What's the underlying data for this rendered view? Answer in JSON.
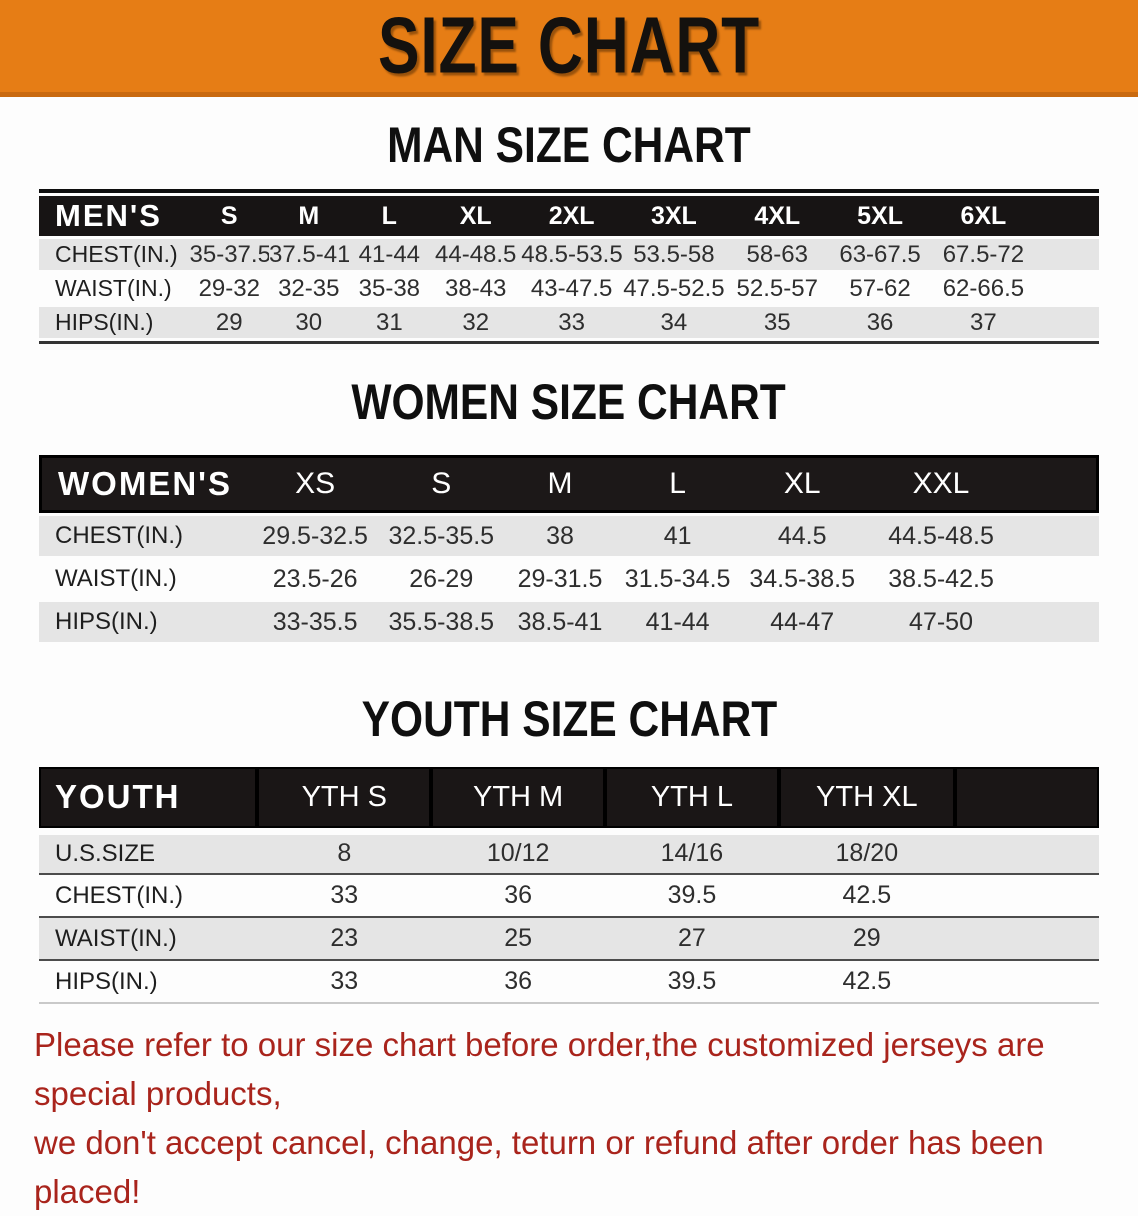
{
  "banner": {
    "title": "SIZE CHART",
    "bg_color": "#e67d15",
    "edge_color": "#c96a10"
  },
  "colors": {
    "header_bar": "#171414",
    "row_gray": "#e5e5e5",
    "row_white": "#fdfdfd",
    "disclaimer_red": "#a9241c"
  },
  "sections": [
    {
      "title": "MAN SIZE CHART",
      "header_label": "MEN'S",
      "columns": [
        "S",
        "M",
        "L",
        "XL",
        "2XL",
        "3XL",
        "4XL",
        "5XL",
        "6XL"
      ],
      "rows": [
        {
          "label": "CHEST(IN.)",
          "values": [
            "35-37.5",
            "37.5-41",
            "41-44",
            "44-48.5",
            "48.5-53.5",
            "53.5-58",
            "58-63",
            "63-67.5",
            "67.5-72"
          ]
        },
        {
          "label": "WAIST(IN.)",
          "values": [
            "29-32",
            "32-35",
            "35-38",
            "38-43",
            "43-47.5",
            "47.5-52.5",
            "52.5-57",
            "57-62",
            "62-66.5"
          ]
        },
        {
          "label": "HIPS(IN.)",
          "values": [
            "29",
            "30",
            "31",
            "32",
            "33",
            "34",
            "35",
            "36",
            "37"
          ]
        }
      ]
    },
    {
      "title": "WOMEN SIZE CHART",
      "header_label": "WOMEN'S",
      "columns": [
        "XS",
        "S",
        "M",
        "L",
        "XL",
        "XXL"
      ],
      "rows": [
        {
          "label": "CHEST(IN.)",
          "values": [
            "29.5-32.5",
            "32.5-35.5",
            "38",
            "41",
            "44.5",
            "44.5-48.5"
          ]
        },
        {
          "label": "WAIST(IN.)",
          "values": [
            "23.5-26",
            "26-29",
            "29-31.5",
            "31.5-34.5",
            "34.5-38.5",
            "38.5-42.5"
          ]
        },
        {
          "label": "HIPS(IN.)",
          "values": [
            "33-35.5",
            "35.5-38.5",
            "38.5-41",
            "41-44",
            "44-47",
            "47-50"
          ]
        }
      ]
    },
    {
      "title": "YOUTH SIZE CHART",
      "header_label": "YOUTH",
      "columns": [
        "YTH S",
        "YTH M",
        "YTH L",
        "YTH XL"
      ],
      "rows": [
        {
          "label": "U.S.SIZE",
          "values": [
            "8",
            "10/12",
            "14/16",
            "18/20"
          ]
        },
        {
          "label": "CHEST(IN.)",
          "values": [
            "33",
            "36",
            "39.5",
            "42.5"
          ]
        },
        {
          "label": "WAIST(IN.)",
          "values": [
            "23",
            "25",
            "27",
            "29"
          ]
        },
        {
          "label": "HIPS(IN.)",
          "values": [
            "33",
            "36",
            "39.5",
            "42.5"
          ]
        }
      ]
    }
  ],
  "disclaimer": {
    "line1": "Please refer to our size chart before order,the customized jerseys are special products,",
    "line2": "we don't accept cancel, change, teturn or refund after order has been placed!"
  }
}
